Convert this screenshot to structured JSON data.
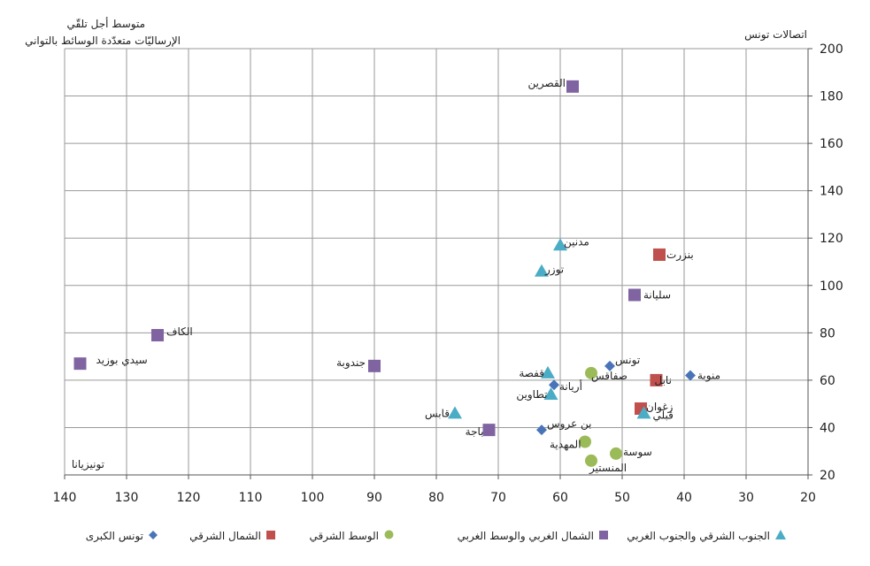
{
  "chart_data": {
    "type": "scatter",
    "title": "",
    "ylabel": "اتصالات تونس",
    "xlabel_lines": [
      "متوسط أجل تلقّي",
      "الإرساليّات متعدّدة الوسائط بالتواني"
    ],
    "xlabel_corner": "تونيزيانا",
    "xlim": [
      140,
      20
    ],
    "ylim": [
      20,
      200
    ],
    "x_ticks": [
      140,
      130,
      120,
      110,
      100,
      90,
      80,
      70,
      60,
      50,
      40,
      30,
      20
    ],
    "y_ticks": [
      20,
      40,
      60,
      80,
      100,
      120,
      140,
      160,
      180,
      200
    ],
    "x_reversed": true,
    "grid": true,
    "legend_position": "bottom",
    "series": [
      {
        "name": "تونس الكبرى",
        "marker": "diamond",
        "color": "#4a74b8",
        "points": [
          {
            "label": "تونس",
            "x": 52,
            "y": 66
          },
          {
            "label": "منوبة",
            "x": 39,
            "y": 62
          },
          {
            "label": "أريانة",
            "x": 61,
            "y": 58
          },
          {
            "label": "بن عروس",
            "x": 63,
            "y": 39
          }
        ]
      },
      {
        "name": "الشمال الشرقي",
        "marker": "square",
        "color": "#c0504d",
        "points": [
          {
            "label": "بنزرت",
            "x": 44,
            "y": 113
          },
          {
            "label": "نابل",
            "x": 44.5,
            "y": 60
          },
          {
            "label": "زغوان",
            "x": 47,
            "y": 48
          }
        ]
      },
      {
        "name": "الوسط الشرقي",
        "marker": "circle",
        "color": "#9bbb59",
        "points": [
          {
            "label": "صفاقس",
            "x": 55,
            "y": 63
          },
          {
            "label": "المهدية",
            "x": 56,
            "y": 34
          },
          {
            "label": "سوسة",
            "x": 51,
            "y": 29
          },
          {
            "label": "المنستير",
            "x": 55,
            "y": 26
          }
        ]
      },
      {
        "name": "الشمال الغربي والوسط الغربي",
        "marker": "square",
        "color": "#8064a2",
        "points": [
          {
            "label": "القصرين",
            "x": 58,
            "y": 184
          },
          {
            "label": "سليانة",
            "x": 48,
            "y": 96
          },
          {
            "label": "الكاف",
            "x": 125,
            "y": 79
          },
          {
            "label": "سيدي بوزيد",
            "x": 137.5,
            "y": 67
          },
          {
            "label": "جندوبة",
            "x": 90,
            "y": 66
          },
          {
            "label": "باجة",
            "x": 71.5,
            "y": 39
          }
        ]
      },
      {
        "name": "الجنوب الشرقي والجنوب الغربي",
        "marker": "triangle",
        "color": "#4bacc6",
        "points": [
          {
            "label": "مدنين",
            "x": 60,
            "y": 117
          },
          {
            "label": "توزر",
            "x": 63,
            "y": 106
          },
          {
            "label": "قفصة",
            "x": 62,
            "y": 63
          },
          {
            "label": "تطاوين",
            "x": 61.5,
            "y": 54
          },
          {
            "label": "قابس",
            "x": 77,
            "y": 46
          },
          {
            "label": "قبلي",
            "x": 46.5,
            "y": 46
          }
        ]
      }
    ]
  }
}
